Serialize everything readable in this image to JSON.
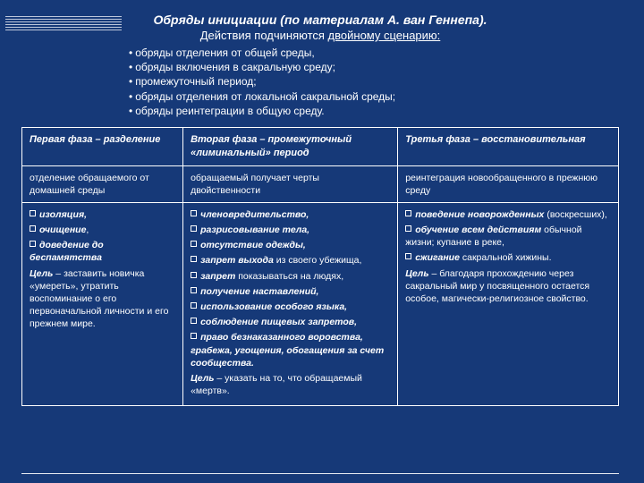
{
  "title": "Обряды инициации (по материалам А. ван Геннепа).",
  "subtitle_plain": "Действия подчиняются ",
  "subtitle_under": "двойному сценарию:",
  "intro": [
    "обряды отделения от общей среды,",
    "обряды включения в сакральную среду;",
    "промежуточный период;",
    "обряды отделения от локальной сакральной среды;",
    "обряды реинтеграции в общую среду."
  ],
  "headers": {
    "c1": "Первая фаза – разделение",
    "c2": "Вторая фаза – промежуточный «лиминальный» период",
    "c3": "Третья фаза – восстановительная"
  },
  "row2": {
    "c1": "отделение обращаемого от домашней среды",
    "c2": "обращаемый получает черты двойственности",
    "c3": "реинтеграция новообращенного  в прежнюю среду"
  },
  "row3": {
    "c1": {
      "i0": "изоляция,",
      "i1": "очищение",
      "i1_suffix": ",",
      "i2": "доведение до беспамятства",
      "goal_label": "Цель",
      "goal_text": " – заставить новичка «умереть», утратить воспоминание о его первоначальной личности и его прежнем мире."
    },
    "c2": {
      "i0": "членовредительство,",
      "i1": "разрисовывание тела,",
      "i2": "отсутствие одежды,",
      "i3a": "запрет выхода",
      "i3b": " из своего убежища,",
      "i4a": "запрет",
      "i4b": " показываться на людях,",
      "i5": "получение наставлений,",
      "i6": "использование особого языка,",
      "i7": "соблюдение пищевых запретов,",
      "i8": "право безнаказанного воровства, грабежа, угощения, обогащения за счет сообщества.",
      "goal_label": "Цель",
      "goal_text": " – указать на то, что обращаемый «мертв»."
    },
    "c3": {
      "i0a": "поведение новорожденных",
      "i0b": " (воскресших),",
      "i1a": "обучение всем действиям",
      "i1b": " обычной жизни; купание в реке,",
      "i2a": "сжигание",
      "i2b": " сакральной хижины.",
      "goal_label": "Цель",
      "goal_text": " – благодаря прохождению через сакральный мир у посвященного остается особое, магически-религиозное свойство."
    }
  }
}
